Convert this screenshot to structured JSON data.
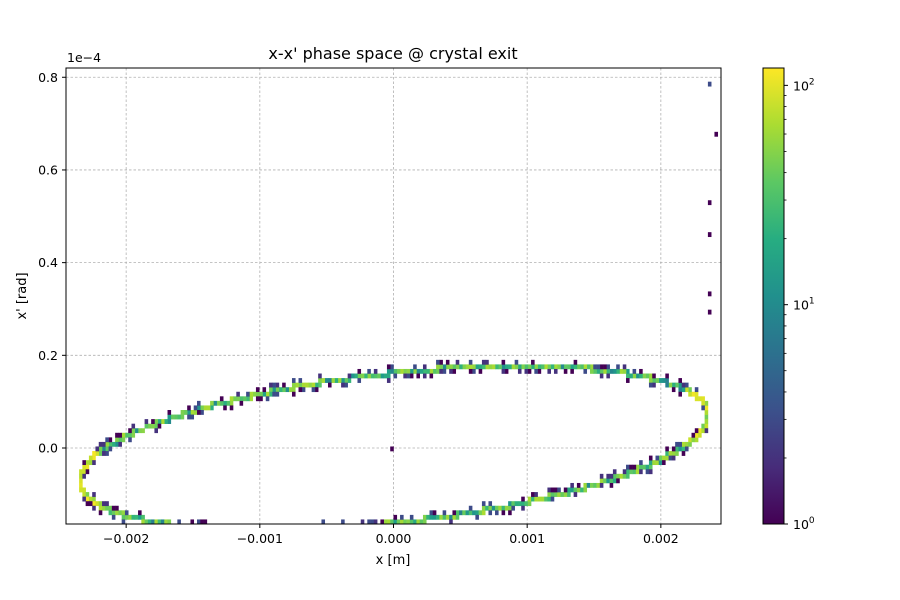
{
  "chart_data": {
    "type": "heatmap",
    "title": "x-x' phase space @ crystal exit",
    "xlabel": "x [m]",
    "ylabel": "x' [rad]",
    "y_offset_label": "1e−4",
    "xlim": [
      -0.00245,
      0.00245
    ],
    "ylim": [
      -1.64e-05,
      8.2e-05
    ],
    "x_ticks": [
      {
        "value": -0.002,
        "label": "−0.002"
      },
      {
        "value": -0.001,
        "label": "−0.001"
      },
      {
        "value": 0.0,
        "label": "0.000"
      },
      {
        "value": 0.001,
        "label": "0.001"
      },
      {
        "value": 0.002,
        "label": "0.002"
      }
    ],
    "y_ticks": [
      {
        "value": 0.0,
        "label": "0.0"
      },
      {
        "value": 2e-05,
        "label": "0.2"
      },
      {
        "value": 4e-05,
        "label": "0.4"
      },
      {
        "value": 6e-05,
        "label": "0.6"
      },
      {
        "value": 8e-05,
        "label": "0.8"
      }
    ],
    "grid": true,
    "colormap": "viridis",
    "colorbar": {
      "scale": "log",
      "range": [
        1,
        120
      ],
      "major_ticks": [
        {
          "value": 1,
          "base": "10",
          "exp": "0"
        },
        {
          "value": 10,
          "base": "10",
          "exp": "1"
        },
        {
          "value": 100,
          "base": "10",
          "exp": "2"
        }
      ],
      "minor_ticks": [
        2,
        3,
        4,
        5,
        6,
        7,
        8,
        9,
        20,
        30,
        40,
        50,
        60,
        70,
        80,
        90
      ]
    },
    "ellipse": {
      "x_extent": 0.00235,
      "xp_extent": 1.58e-05,
      "xp_at_x_center_upper": 7.1e-06,
      "xp_at_x_center_lower": -7.1e-06,
      "edge_counts": "approx 5-60",
      "tip_counts": "approx 60-120"
    },
    "isolated_points": [
      {
        "x": 0.00237,
        "xp": 7.9e-05,
        "count": 3
      },
      {
        "x": 0.00242,
        "xp": 6.8e-05,
        "count": 1
      },
      {
        "x": 0.00236,
        "xp": 5.3e-05,
        "count": 1
      },
      {
        "x": 0.00236,
        "xp": 4.6e-05,
        "count": 1
      },
      {
        "x": 0.00236,
        "xp": 3.3e-05,
        "count": 1
      },
      {
        "x": 0.00236,
        "xp": 2.9e-05,
        "count": 1
      },
      {
        "x": -1.3e-06,
        "xp": 3e-07,
        "count": 1
      }
    ]
  }
}
